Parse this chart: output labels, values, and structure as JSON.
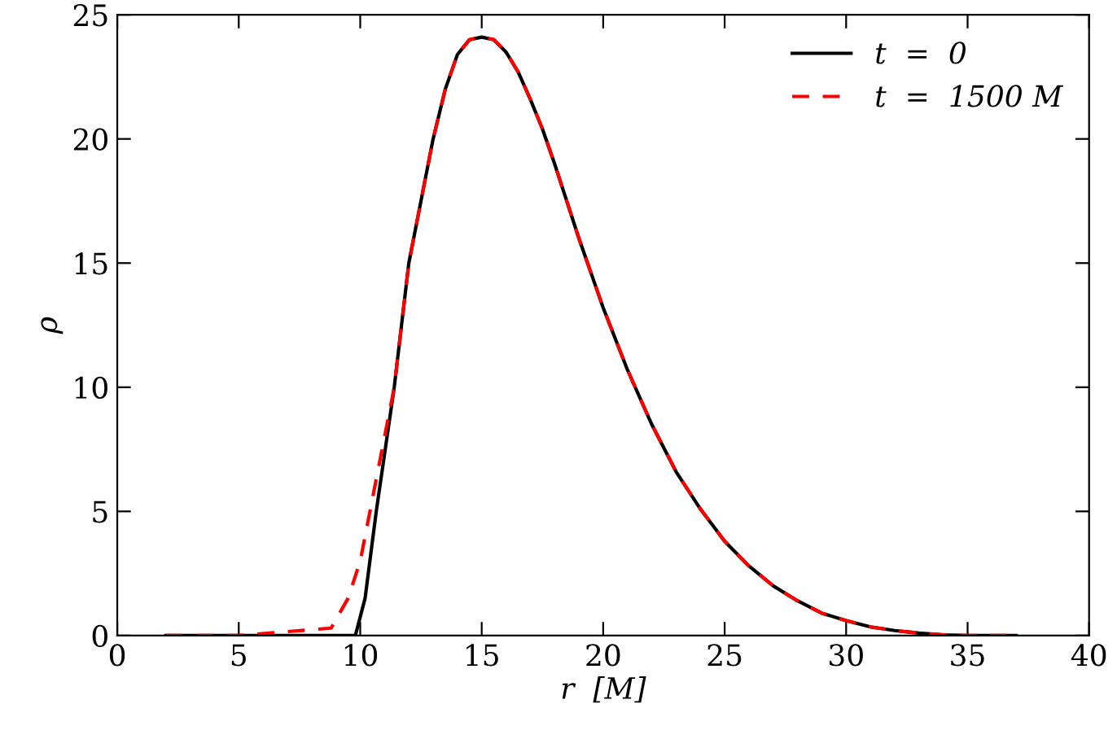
{
  "chart_data": {
    "type": "line",
    "xlabel": "r  [M]",
    "ylabel": "ρ",
    "xlim": [
      0,
      40
    ],
    "ylim": [
      0,
      25
    ],
    "xticks": [
      0,
      5,
      10,
      15,
      20,
      25,
      30,
      35,
      40
    ],
    "yticks": [
      0,
      5,
      10,
      15,
      20,
      25
    ],
    "grid": false,
    "legend": "top right",
    "series": [
      {
        "name": "t  =  0",
        "color": "#000000",
        "line_style": "solid",
        "x": [
          2,
          5,
          9.8,
          10.2,
          10.66,
          11.4,
          12,
          13,
          13.5,
          14,
          14.5,
          15,
          15.5,
          16,
          16.5,
          17,
          17.5,
          18,
          19,
          20,
          21,
          22,
          23,
          24,
          25,
          26,
          27,
          28,
          29,
          30,
          31,
          32,
          33,
          34,
          35,
          37
        ],
        "values": [
          0,
          0,
          0,
          1.5,
          5,
          10,
          15,
          20,
          22,
          23.4,
          24,
          24.1,
          24,
          23.5,
          22.7,
          21.6,
          20.4,
          19,
          16,
          13.2,
          10.7,
          8.5,
          6.6,
          5.1,
          3.8,
          2.8,
          2,
          1.4,
          0.9,
          0.6,
          0.35,
          0.2,
          0.1,
          0.03,
          0,
          0
        ]
      },
      {
        "name": "t  =  1500 M",
        "color": "#ff0000",
        "line_style": "dashed",
        "x": [
          2,
          5,
          8.8,
          9.5,
          10,
          10.5,
          11,
          11.4,
          12,
          13,
          13.5,
          14,
          14.5,
          15,
          15.5,
          16,
          16.5,
          17,
          17.5,
          18,
          19,
          20,
          21,
          22,
          23,
          24,
          25,
          26,
          27,
          28,
          29,
          30,
          31,
          32,
          33,
          34,
          35,
          37
        ],
        "values": [
          0,
          0,
          0.3,
          1.5,
          3,
          5.5,
          8,
          10,
          15,
          20,
          22,
          23.4,
          24,
          24.1,
          24,
          23.5,
          22.7,
          21.6,
          20.4,
          19,
          16,
          13.2,
          10.7,
          8.5,
          6.6,
          5.1,
          3.8,
          2.8,
          2,
          1.4,
          0.9,
          0.6,
          0.35,
          0.2,
          0.1,
          0.03,
          0,
          0
        ]
      }
    ]
  }
}
